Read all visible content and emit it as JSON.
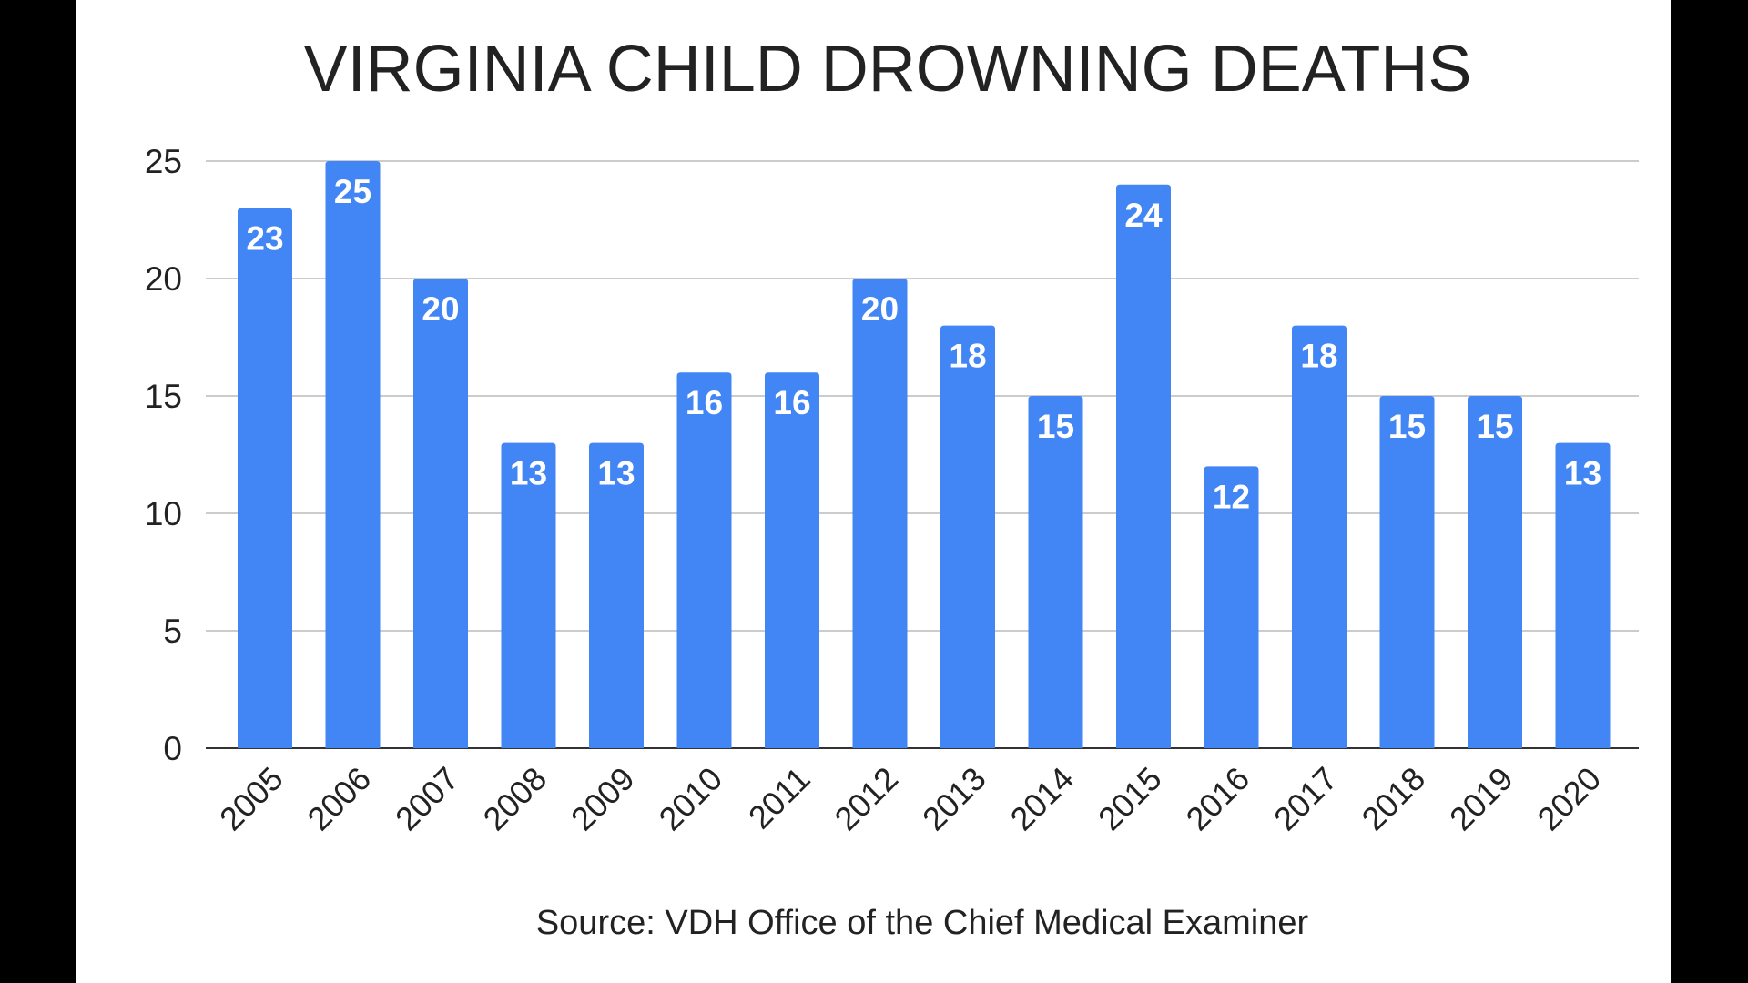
{
  "chart_data": {
    "type": "bar",
    "title": "VIRGINIA CHILD DROWNING DEATHS",
    "source": "Source: VDH Office of the Chief Medical Examiner",
    "xlabel": "",
    "ylabel": "",
    "categories": [
      "2005",
      "2006",
      "2007",
      "2008",
      "2009",
      "2010",
      "2011",
      "2012",
      "2013",
      "2014",
      "2015",
      "2016",
      "2017",
      "2018",
      "2019",
      "2020"
    ],
    "values": [
      23,
      25,
      20,
      13,
      13,
      16,
      16,
      20,
      18,
      15,
      24,
      12,
      18,
      15,
      15,
      13
    ],
    "ylim": [
      0,
      25
    ],
    "yticks": [
      0,
      5,
      10,
      15,
      20,
      25
    ],
    "grid": true,
    "data_labels": true,
    "legend": "none",
    "bar_color": "#4285f4",
    "label_color": "#ffffff"
  }
}
